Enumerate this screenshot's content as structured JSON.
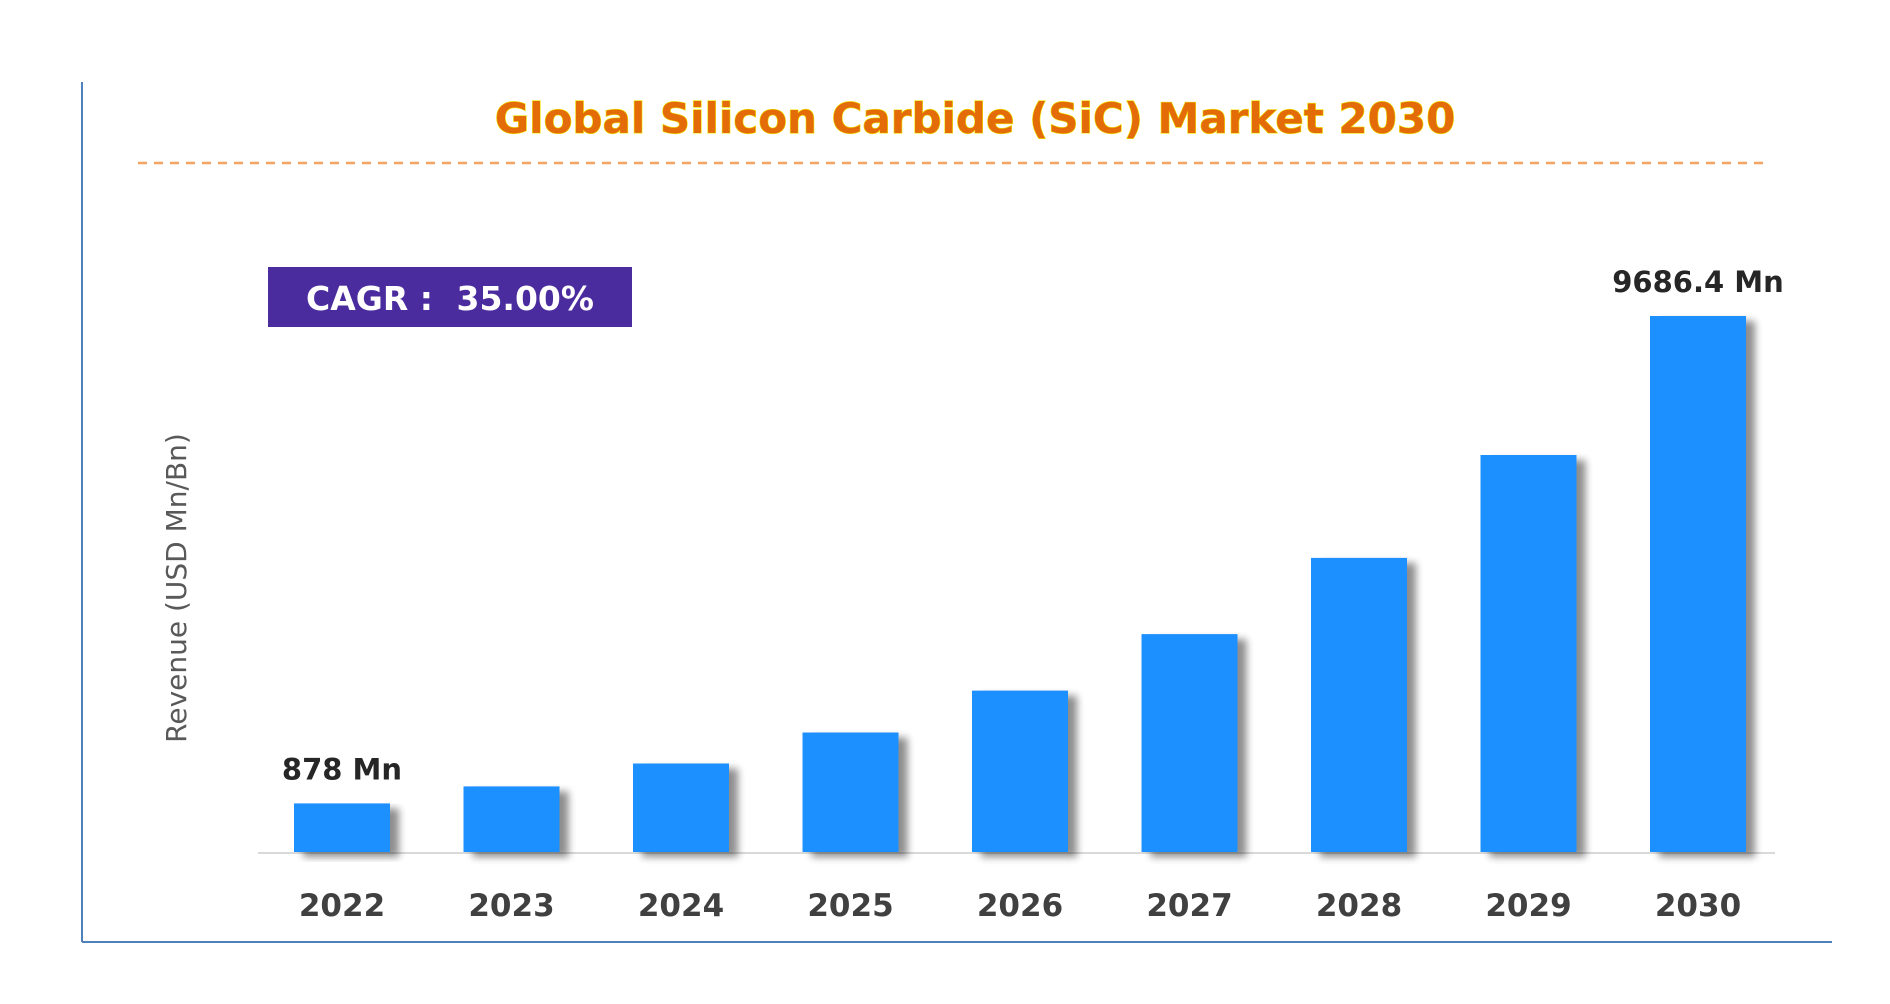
{
  "chart_data": {
    "type": "bar",
    "title": "Global Silicon Carbide (SiC) Market 2030",
    "xlabel": "",
    "ylabel": "Revenue (USD Mn/Bn)",
    "categories": [
      "2022",
      "2023",
      "2024",
      "2025",
      "2026",
      "2027",
      "2028",
      "2029",
      "2030"
    ],
    "values": [
      878,
      1185,
      1600,
      2160,
      2916,
      3937,
      5315,
      7175,
      9686.4
    ],
    "ylim": [
      0,
      10000
    ],
    "grid": false,
    "legend": "none",
    "data_labels": [
      {
        "category": "2022",
        "text": "878 Mn"
      },
      {
        "category": "2030",
        "text": "9686.4 Mn"
      }
    ],
    "annotation": {
      "label": "CAGR :",
      "value": "35.00%"
    },
    "colors": {
      "bar": "#1E90FF",
      "bar_shadow": "#A6A6A6",
      "title": "#E36C09",
      "title_outline": "#F2E600",
      "title_rule": "#F4A460",
      "cagr_box": "#4B2C9E",
      "frame": "#4F81BD",
      "baseline": "#D9D9D9"
    }
  }
}
